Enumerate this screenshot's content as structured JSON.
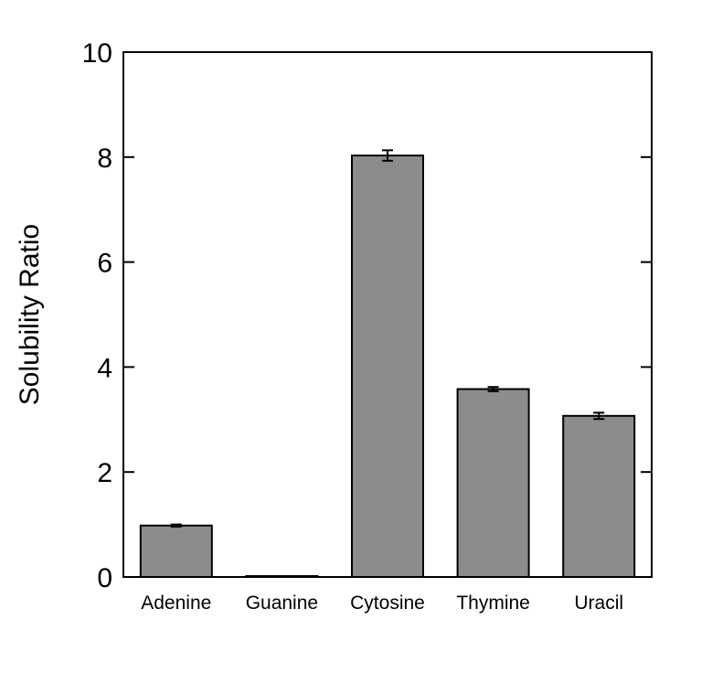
{
  "chart_data": {
    "type": "bar",
    "title": "",
    "xlabel": "",
    "ylabel": "Solubility Ratio",
    "categories": [
      "Adenine",
      "Guanine",
      "Cytosine",
      "Thymine",
      "Uracil"
    ],
    "values": [
      0.98,
      0.01,
      8.03,
      3.58,
      3.07
    ],
    "errors": [
      0.02,
      0.0,
      0.1,
      0.04,
      0.06
    ],
    "ylim": [
      0,
      10
    ],
    "yticks": [
      "0",
      "2",
      "4",
      "6",
      "8",
      "10"
    ],
    "bar_color": "#8c8c8c",
    "grid": false,
    "legend": "none"
  }
}
